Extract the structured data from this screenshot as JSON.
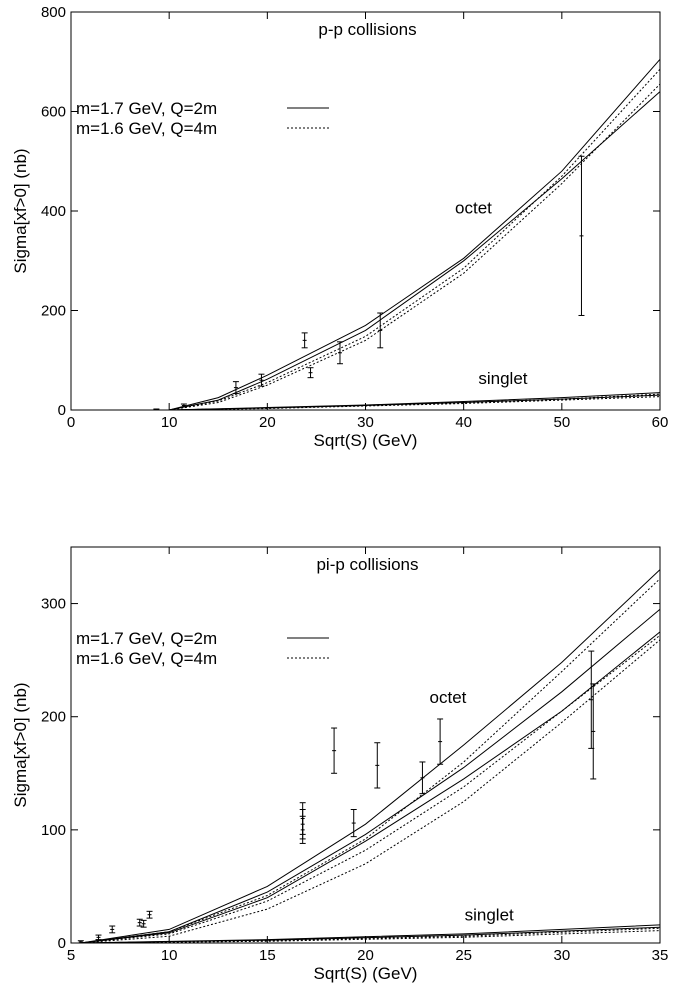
{
  "chart_data": [
    {
      "type": "line",
      "title": "p-p collisions",
      "xlabel": "Sqrt(S) (GeV)",
      "ylabel": "Sigma[xf>0] (nb)",
      "xlim": [
        0,
        60
      ],
      "ylim": [
        0,
        800
      ],
      "xticks": [
        0,
        10,
        20,
        30,
        40,
        50,
        60
      ],
      "yticks": [
        0,
        200,
        400,
        600,
        800
      ],
      "grid": false,
      "legend_position": "upper-left",
      "legend": [
        {
          "label": "m=1.7 GeV, Q=2m",
          "style": "solid"
        },
        {
          "label": "m=1.6 GeV, Q=4m",
          "style": "dotted"
        }
      ],
      "annotations": [
        {
          "text": "octet",
          "x": 41,
          "y": 395
        },
        {
          "text": "singlet",
          "x": 44,
          "y": 52
        }
      ],
      "series": [
        {
          "style": "solid",
          "group": "octet",
          "x": [
            10,
            15,
            20,
            30,
            40,
            50,
            60
          ],
          "y": [
            0,
            25,
            70,
            170,
            305,
            480,
            705
          ]
        },
        {
          "style": "solid",
          "group": "octet",
          "x": [
            10,
            15,
            20,
            30,
            40,
            50,
            60
          ],
          "y": [
            0,
            20,
            62,
            160,
            300,
            465,
            640
          ]
        },
        {
          "style": "dotted",
          "group": "octet",
          "x": [
            10,
            15,
            20,
            30,
            40,
            50,
            60
          ],
          "y": [
            0,
            18,
            55,
            148,
            285,
            470,
            685
          ]
        },
        {
          "style": "dotted",
          "group": "octet",
          "x": [
            10,
            15,
            20,
            30,
            40,
            50,
            60
          ],
          "y": [
            0,
            15,
            50,
            140,
            275,
            455,
            655
          ]
        },
        {
          "style": "solid",
          "group": "singlet",
          "x": [
            10,
            20,
            30,
            40,
            50,
            60
          ],
          "y": [
            0,
            5,
            10,
            17,
            25,
            35
          ]
        },
        {
          "style": "solid",
          "group": "singlet",
          "x": [
            10,
            20,
            30,
            40,
            50,
            60
          ],
          "y": [
            0,
            4,
            9,
            15,
            22,
            30
          ]
        },
        {
          "style": "dotted",
          "group": "singlet",
          "x": [
            10,
            20,
            30,
            40,
            50,
            60
          ],
          "y": [
            0,
            4,
            9,
            15,
            22,
            32
          ]
        },
        {
          "style": "dotted",
          "group": "singlet",
          "x": [
            10,
            20,
            30,
            40,
            50,
            60
          ],
          "y": [
            0,
            3,
            8,
            13,
            20,
            27
          ]
        }
      ],
      "data_points": [
        {
          "x": 8.7,
          "y": 1,
          "err": 1
        },
        {
          "x": 11.5,
          "y": 9,
          "err": 3
        },
        {
          "x": 16.8,
          "y": 45,
          "err": 12
        },
        {
          "x": 19.4,
          "y": 60,
          "err": 12
        },
        {
          "x": 23.8,
          "y": 140,
          "err": 15
        },
        {
          "x": 24.4,
          "y": 75,
          "err": 10
        },
        {
          "x": 27.4,
          "y": 115,
          "err": 22
        },
        {
          "x": 31.5,
          "y": 160,
          "err": 35
        },
        {
          "x": 52,
          "y": 350,
          "err": 160
        }
      ]
    },
    {
      "type": "line",
      "title": "pi-p collisions",
      "xlabel": "Sqrt(S) (GeV)",
      "ylabel": "Sigma[xf>0] (nb)",
      "xlim": [
        5,
        35
      ],
      "ylim": [
        0,
        350
      ],
      "xticks": [
        5,
        10,
        15,
        20,
        25,
        30,
        35
      ],
      "yticks": [
        0,
        100,
        200,
        300
      ],
      "grid": false,
      "legend_position": "upper-left",
      "legend": [
        {
          "label": "m=1.7 GeV, Q=2m",
          "style": "solid"
        },
        {
          "label": "m=1.6 GeV, Q=4m",
          "style": "dotted"
        }
      ],
      "annotations": [
        {
          "text": "octet",
          "x": 24.2,
          "y": 212
        },
        {
          "text": "singlet",
          "x": 26.3,
          "y": 20
        }
      ],
      "series": [
        {
          "style": "solid",
          "group": "octet",
          "x": [
            5.5,
            10,
            15,
            20,
            25,
            30,
            35
          ],
          "y": [
            0,
            12,
            50,
            105,
            175,
            248,
            330
          ]
        },
        {
          "style": "solid",
          "group": "octet",
          "x": [
            5.5,
            10,
            15,
            20,
            25,
            30,
            35
          ],
          "y": [
            0,
            10,
            45,
            96,
            155,
            222,
            295
          ]
        },
        {
          "style": "solid",
          "group": "octet",
          "x": [
            5.5,
            10,
            15,
            20,
            25,
            30,
            35
          ],
          "y": [
            0,
            9,
            40,
            90,
            145,
            205,
            275
          ]
        },
        {
          "style": "dotted",
          "group": "octet",
          "x": [
            5.5,
            10,
            15,
            20,
            25,
            30,
            35
          ],
          "y": [
            0,
            10,
            42,
            92,
            160,
            240,
            322
          ]
        },
        {
          "style": "dotted",
          "group": "octet",
          "x": [
            5.5,
            10,
            15,
            20,
            25,
            30,
            35
          ],
          "y": [
            0,
            8,
            37,
            82,
            138,
            205,
            272
          ]
        },
        {
          "style": "dotted",
          "group": "octet",
          "x": [
            5.5,
            10,
            15,
            20,
            25,
            30,
            35
          ],
          "y": [
            0,
            6,
            30,
            70,
            125,
            195,
            268
          ]
        },
        {
          "style": "solid",
          "group": "singlet",
          "x": [
            5.5,
            15,
            25,
            35
          ],
          "y": [
            0,
            3,
            8,
            16
          ]
        },
        {
          "style": "solid",
          "group": "singlet",
          "x": [
            5.5,
            15,
            25,
            35
          ],
          "y": [
            0,
            2.5,
            7,
            14
          ]
        },
        {
          "style": "dotted",
          "group": "singlet",
          "x": [
            5.5,
            15,
            25,
            35
          ],
          "y": [
            0,
            2,
            6,
            13
          ]
        },
        {
          "style": "dotted",
          "group": "singlet",
          "x": [
            5.5,
            15,
            25,
            35
          ],
          "y": [
            0,
            1.5,
            5,
            11
          ]
        }
      ],
      "data_points": [
        {
          "x": 5.5,
          "y": 1,
          "err": 1
        },
        {
          "x": 6.4,
          "y": 5,
          "err": 2
        },
        {
          "x": 7.1,
          "y": 12,
          "err": 3
        },
        {
          "x": 8.5,
          "y": 18,
          "err": 3
        },
        {
          "x": 8.7,
          "y": 17,
          "err": 3
        },
        {
          "x": 9.0,
          "y": 25,
          "err": 3
        },
        {
          "x": 16.8,
          "y": 100,
          "err": 12
        },
        {
          "x": 16.8,
          "y": 105,
          "err": 13
        },
        {
          "x": 16.8,
          "y": 110,
          "err": 14
        },
        {
          "x": 18.4,
          "y": 170,
          "err": 20
        },
        {
          "x": 19.4,
          "y": 106,
          "err": 12
        },
        {
          "x": 20.6,
          "y": 157,
          "err": 20
        },
        {
          "x": 22.9,
          "y": 146,
          "err": 14
        },
        {
          "x": 23.8,
          "y": 178,
          "err": 20
        },
        {
          "x": 31.5,
          "y": 215,
          "err": 43
        },
        {
          "x": 31.6,
          "y": 187,
          "err": 42
        }
      ]
    }
  ]
}
